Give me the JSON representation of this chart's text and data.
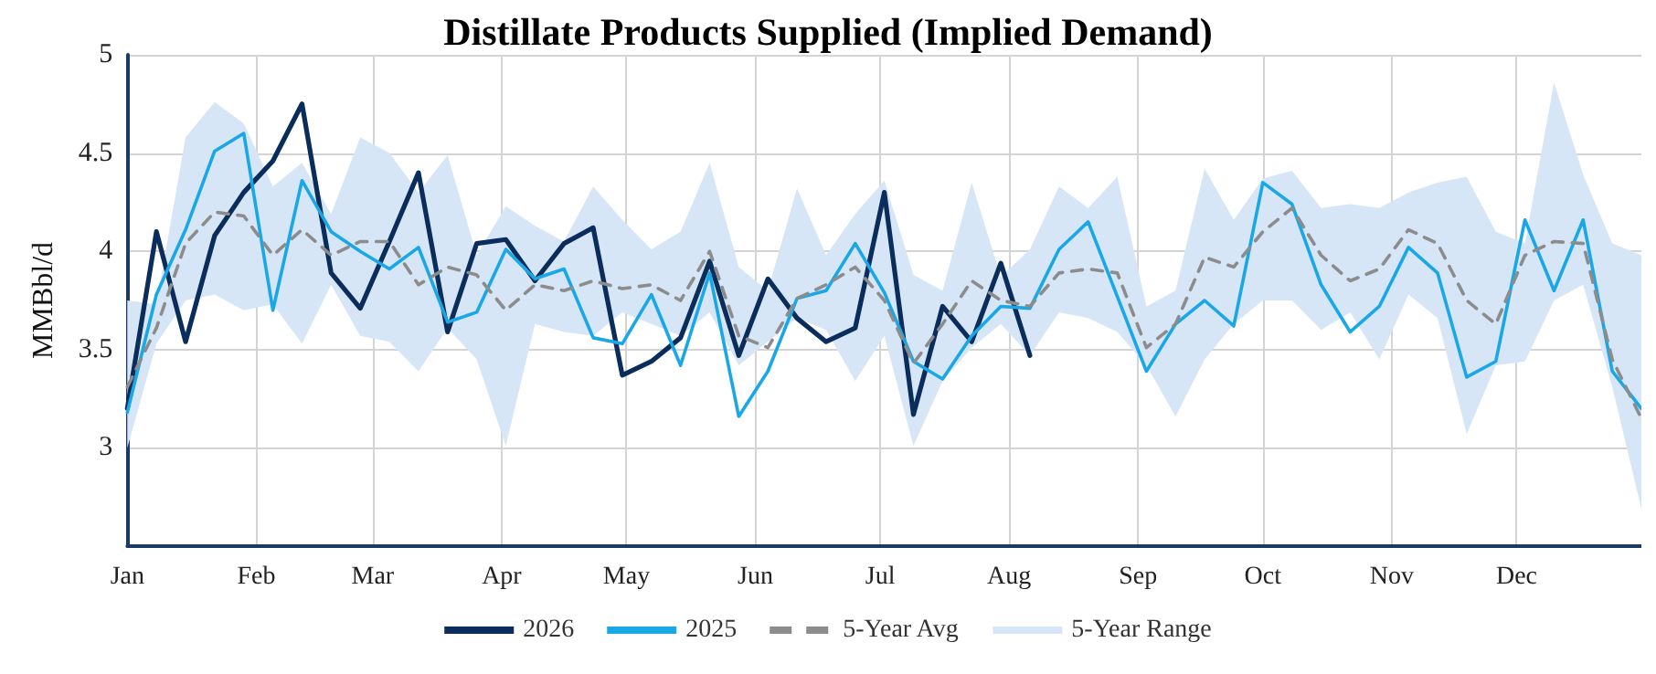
{
  "chart_data": {
    "type": "line",
    "title": "Distillate Products Supplied (Implied Demand)",
    "ylabel": "MMBbl/d",
    "x": [
      "--01-01",
      "--01-08",
      "--01-15",
      "--01-22",
      "--01-29",
      "--02-05",
      "--02-12",
      "--02-19",
      "--02-26",
      "--03-05",
      "--03-12",
      "--03-19",
      "--03-26",
      "--04-02",
      "--04-09",
      "--04-16",
      "--04-23",
      "--04-30",
      "--05-07",
      "--05-14",
      "--05-21",
      "--05-28",
      "--06-04",
      "--06-11",
      "--06-18",
      "--06-25",
      "--07-02",
      "--07-09",
      "--07-16",
      "--07-23",
      "--07-30",
      "--08-06",
      "--08-13",
      "--08-20",
      "--08-27",
      "--09-03",
      "--09-10",
      "--09-17",
      "--09-24",
      "--10-01",
      "--10-08",
      "--10-15",
      "--10-22",
      "--10-29",
      "--11-05",
      "--11-12",
      "--11-19",
      "--11-26",
      "--12-03",
      "--12-10",
      "--12-17",
      "--12-24",
      "--12-31"
    ],
    "series": [
      {
        "name": "5-Year Avg",
        "color": "#8c8c8c",
        "line_style": "dashed",
        "lower": [
          3.0,
          3.53,
          3.75,
          3.78,
          3.7,
          3.73,
          3.53,
          3.83,
          3.57,
          3.54,
          3.39,
          3.61,
          3.45,
          3.01,
          3.63,
          3.59,
          3.57,
          3.69,
          3.63,
          3.57,
          3.69,
          3.42,
          3.54,
          3.66,
          3.6,
          3.34,
          3.57,
          3.01,
          3.34,
          3.51,
          3.63,
          3.47,
          3.69,
          3.66,
          3.59,
          3.42,
          3.16,
          3.45,
          3.63,
          3.75,
          3.75,
          3.6,
          3.69,
          3.45,
          3.78,
          3.66,
          3.07,
          3.42,
          3.44,
          3.75,
          3.83,
          3.31,
          2.69
        ],
        "upper": [
          3.75,
          3.73,
          4.58,
          4.76,
          4.65,
          4.33,
          4.45,
          4.19,
          4.58,
          4.5,
          4.3,
          4.49,
          3.98,
          4.23,
          4.13,
          4.05,
          4.33,
          4.16,
          4.01,
          4.1,
          4.45,
          3.92,
          3.8,
          4.32,
          3.98,
          4.19,
          4.36,
          3.88,
          3.8,
          4.35,
          3.87,
          4.01,
          4.33,
          4.22,
          4.38,
          3.72,
          3.8,
          4.42,
          4.16,
          4.37,
          4.41,
          4.22,
          4.24,
          4.22,
          4.3,
          4.35,
          4.38,
          4.1,
          4.04,
          4.86,
          4.39,
          4.04,
          3.98
        ],
        "values": [
          3.31,
          3.61,
          4.04,
          4.2,
          4.18,
          3.98,
          4.11,
          3.98,
          4.05,
          4.05,
          3.83,
          3.92,
          3.88,
          3.7,
          3.83,
          3.8,
          3.85,
          3.81,
          3.83,
          3.75,
          4.0,
          3.57,
          3.51,
          3.76,
          3.83,
          3.92,
          3.75,
          3.43,
          3.63,
          3.85,
          3.75,
          3.72,
          3.89,
          3.91,
          3.89,
          3.51,
          3.63,
          3.97,
          3.92,
          4.1,
          4.22,
          3.98,
          3.85,
          3.91,
          4.11,
          4.04,
          3.75,
          3.63,
          3.98,
          4.05,
          4.04,
          3.45,
          3.15
        ]
      },
      {
        "name": "2025",
        "color": "#1aa7e8",
        "values": [
          3.18,
          3.78,
          4.11,
          4.51,
          4.6,
          3.7,
          4.36,
          4.1,
          4.0,
          3.91,
          4.02,
          3.64,
          3.69,
          4.01,
          3.86,
          3.91,
          3.56,
          3.53,
          3.78,
          3.42,
          3.89,
          3.16,
          3.39,
          3.76,
          3.8,
          4.04,
          3.79,
          3.44,
          3.35,
          3.57,
          3.72,
          3.71,
          4.01,
          4.15,
          3.77,
          3.39,
          3.63,
          3.75,
          3.62,
          4.35,
          4.24,
          3.83,
          3.59,
          3.72,
          4.02,
          3.89,
          3.36,
          3.44,
          4.16,
          3.8,
          4.16,
          3.39,
          3.2
        ]
      },
      {
        "name": "2026",
        "color": "#0a2d5c",
        "values": [
          3.2,
          4.1,
          3.54,
          4.08,
          4.3,
          4.46,
          4.75,
          3.89,
          3.71,
          4.05,
          4.4,
          3.59,
          4.04,
          4.06,
          3.85,
          4.04,
          4.12,
          3.37,
          3.44,
          3.56,
          3.95,
          3.47,
          3.86,
          3.66,
          3.54,
          3.61,
          4.3,
          3.17,
          3.72,
          3.54,
          3.94,
          3.47,
          null,
          null,
          null,
          null,
          null,
          null,
          null,
          null,
          null,
          null,
          null,
          null,
          null,
          null,
          null,
          null,
          null,
          null,
          null,
          null,
          null
        ]
      }
    ],
    "xlim": [
      "--01-01",
      "--12-31"
    ],
    "xticks": [
      {
        "value": "--01-01",
        "label": "Jan"
      },
      {
        "value": "--02-01",
        "label": "Feb"
      },
      {
        "value": "--03-01",
        "label": "Mar"
      },
      {
        "value": "--04-01",
        "label": "Apr"
      },
      {
        "value": "--05-01",
        "label": "May"
      },
      {
        "value": "--06-01",
        "label": "Jun"
      },
      {
        "value": "--07-01",
        "label": "Jul"
      },
      {
        "value": "--08-01",
        "label": "Aug"
      },
      {
        "value": "--09-01",
        "label": "Sep"
      },
      {
        "value": "--10-01",
        "label": "Oct"
      },
      {
        "value": "--11-01",
        "label": "Nov"
      },
      {
        "value": "--12-01",
        "label": "Dec"
      }
    ],
    "annotations": [
      "5-Year Range"
    ],
    "ylim": [
      2.5,
      5
    ],
    "yticks": [
      3,
      3.5,
      4,
      4.5,
      5
    ],
    "grid": true,
    "legend": "bottom",
    "marker": "none",
    "line_style": "solid"
  }
}
